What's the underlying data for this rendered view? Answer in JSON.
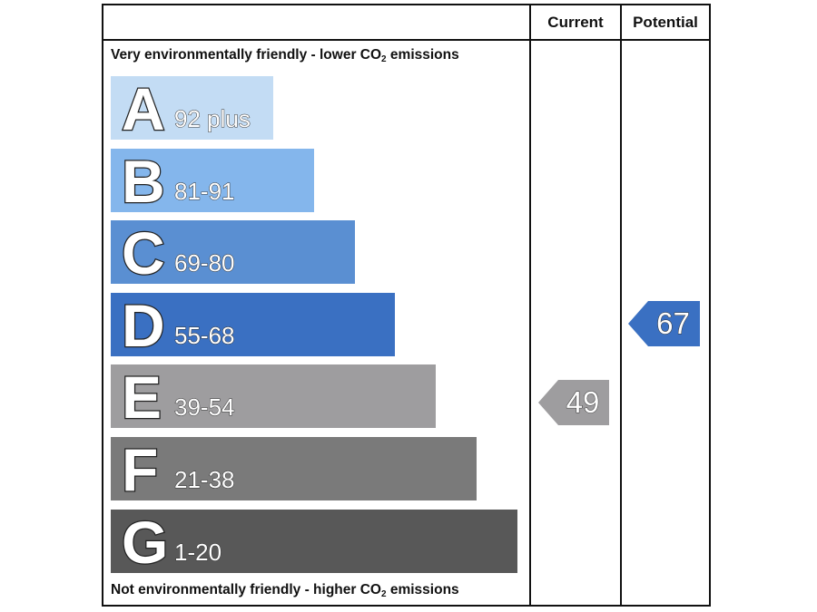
{
  "header": {
    "current_label": "Current",
    "potential_label": "Potential"
  },
  "captions": {
    "top_prefix": "Very environmentally friendly - lower CO",
    "top_sub": "2",
    "top_suffix": " emissions",
    "bottom_prefix": "Not environmentally friendly - higher CO",
    "bottom_sub": "2",
    "bottom_suffix": " emissions"
  },
  "chart_data": {
    "type": "bar",
    "bands": [
      {
        "letter": "A",
        "range": "92 plus",
        "color": "#c3dcf4"
      },
      {
        "letter": "B",
        "range": "81-91",
        "color": "#84b6ec"
      },
      {
        "letter": "C",
        "range": "69-80",
        "color": "#5a8fd2"
      },
      {
        "letter": "D",
        "range": "55-68",
        "color": "#3a70c2"
      },
      {
        "letter": "E",
        "range": "39-54",
        "color": "#9e9d9f"
      },
      {
        "letter": "F",
        "range": "21-38",
        "color": "#7a7a7a"
      },
      {
        "letter": "G",
        "range": "1-20",
        "color": "#585858"
      }
    ],
    "current": {
      "value": "49",
      "band": "E",
      "color": "#9e9d9f"
    },
    "potential": {
      "value": "67",
      "band": "D",
      "color": "#3a70c2"
    }
  }
}
